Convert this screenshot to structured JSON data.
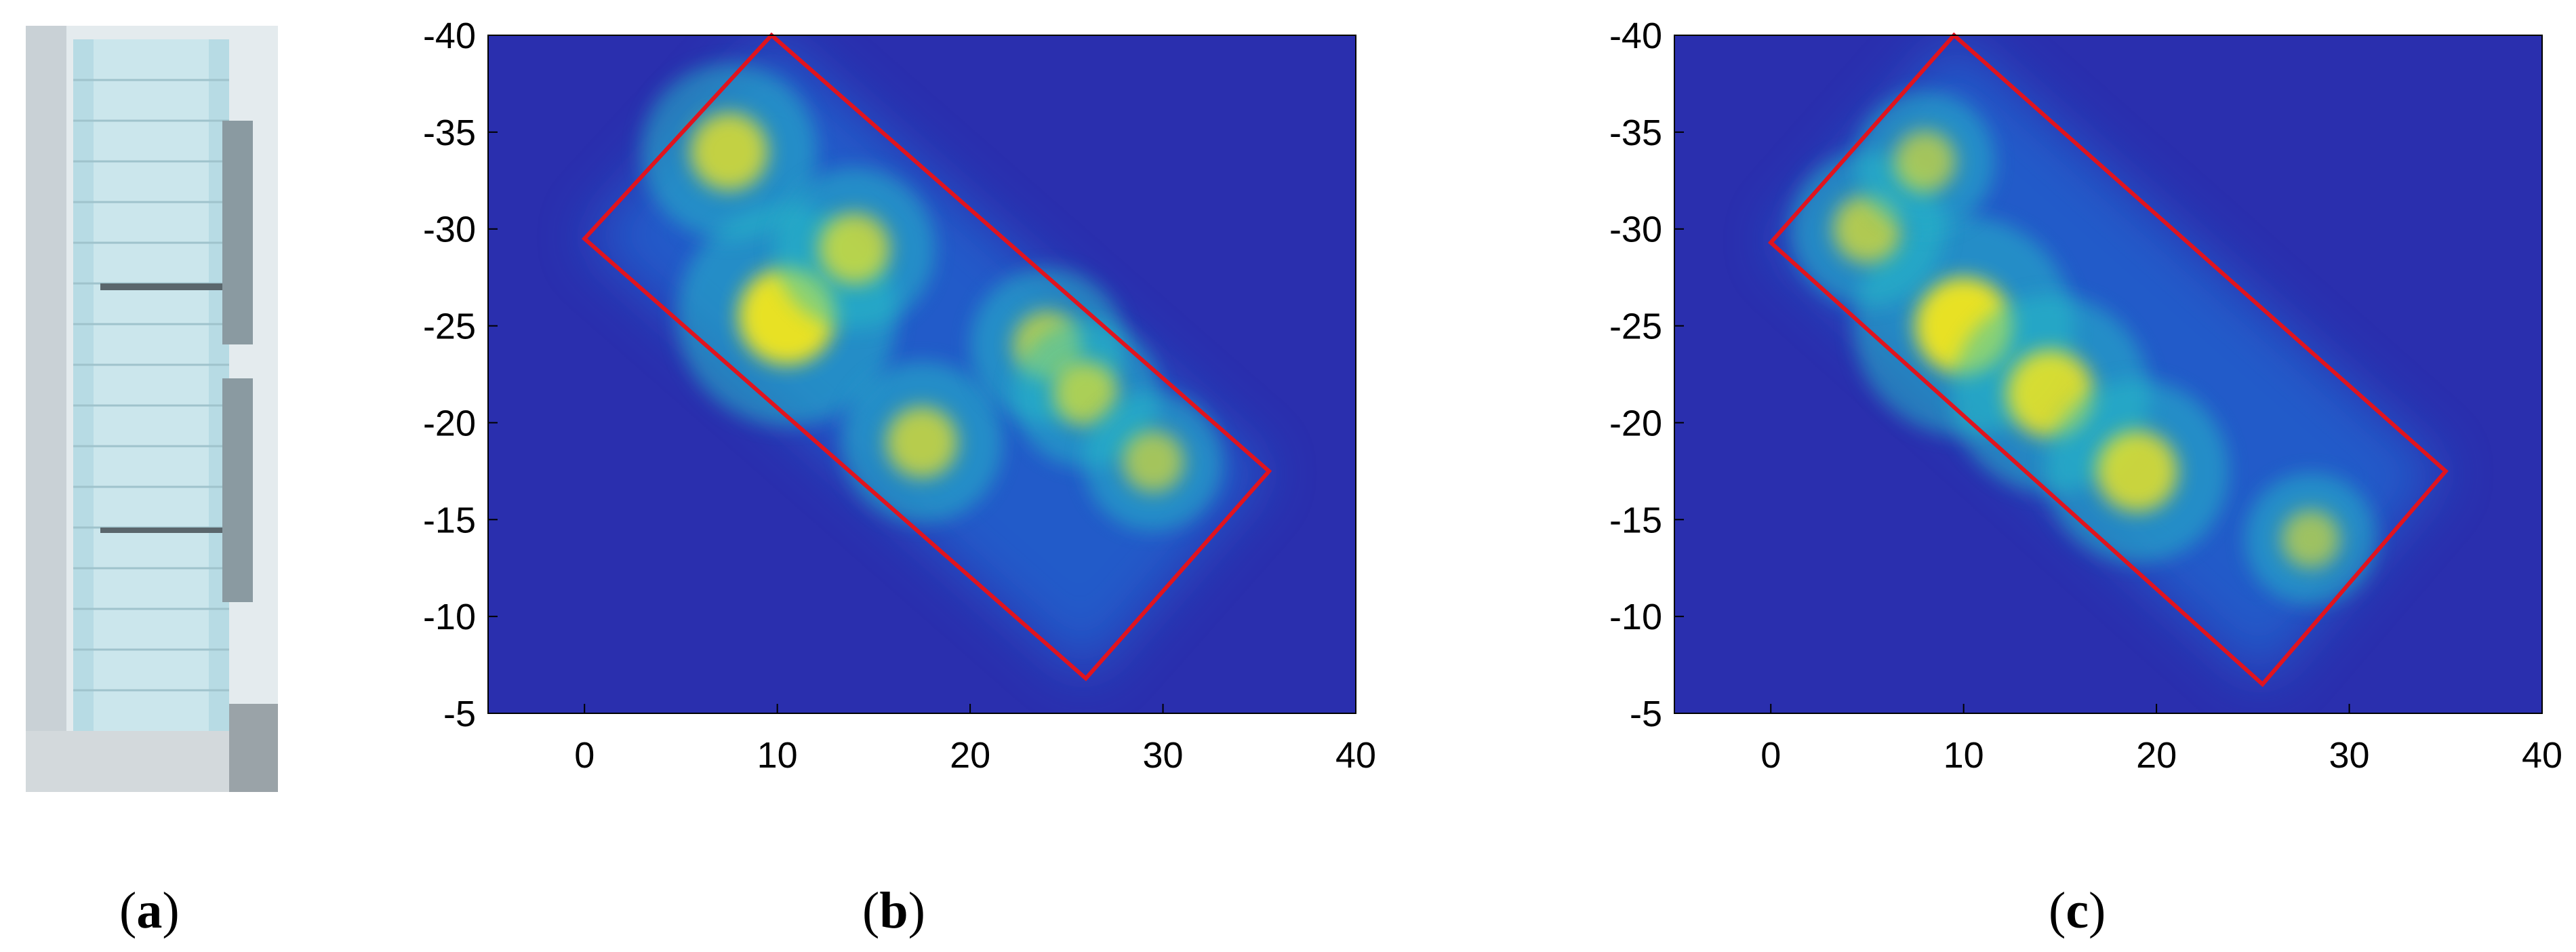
{
  "captions": [
    {
      "open": "(",
      "letter": "a",
      "close": ")"
    },
    {
      "open": "(",
      "letter": "b",
      "close": ")"
    },
    {
      "open": "(",
      "letter": "c",
      "close": ")"
    }
  ],
  "colors": {
    "background_low": "#2a2fae",
    "mid": "#1f7fe0",
    "cyan": "#25c0c6",
    "high": "#f3e61c",
    "box": "#e0141e"
  },
  "chart_data": [
    {
      "type": "heatmap",
      "panel": "b",
      "title": "",
      "xlabel": "",
      "ylabel": "",
      "x_ticks": [
        "0",
        "10",
        "20",
        "30",
        "40"
      ],
      "y_ticks": [
        "-40",
        "-35",
        "-30",
        "-25",
        "-20",
        "-15",
        "-10",
        "-5"
      ],
      "xlim": [
        -5,
        40
      ],
      "ylim": [
        -5,
        -40
      ],
      "grid": false,
      "footprint_box": [
        [
          0,
          -29.5
        ],
        [
          9.7,
          -40
        ],
        [
          35.5,
          -17.5
        ],
        [
          26,
          -6.8
        ]
      ],
      "hotspots": [
        {
          "x": 10.5,
          "y": -25.5,
          "intensity": 1.0
        },
        {
          "x": 7.5,
          "y": -34,
          "intensity": 0.7
        },
        {
          "x": 14,
          "y": -29,
          "intensity": 0.6
        },
        {
          "x": 17.5,
          "y": -19,
          "intensity": 0.6
        },
        {
          "x": 24,
          "y": -24,
          "intensity": 0.55
        },
        {
          "x": 26,
          "y": -21.5,
          "intensity": 0.5
        },
        {
          "x": 29.5,
          "y": -18,
          "intensity": 0.45
        }
      ]
    },
    {
      "type": "heatmap",
      "panel": "c",
      "title": "",
      "xlabel": "",
      "ylabel": "",
      "x_ticks": [
        "0",
        "10",
        "20",
        "30",
        "40"
      ],
      "y_ticks": [
        "-40",
        "-35",
        "-30",
        "-25",
        "-20",
        "-15",
        "-10",
        "-5"
      ],
      "xlim": [
        -5,
        40
      ],
      "ylim": [
        -5,
        -40
      ],
      "grid": false,
      "footprint_box": [
        [
          0,
          -29.3
        ],
        [
          9.5,
          -40
        ],
        [
          35,
          -17.5
        ],
        [
          25.5,
          -6.5
        ]
      ],
      "hotspots": [
        {
          "x": 10,
          "y": -25,
          "intensity": 1.0
        },
        {
          "x": 14.5,
          "y": -21.5,
          "intensity": 0.85
        },
        {
          "x": 19,
          "y": -17.5,
          "intensity": 0.75
        },
        {
          "x": 5,
          "y": -30,
          "intensity": 0.55
        },
        {
          "x": 8,
          "y": -33.5,
          "intensity": 0.45
        },
        {
          "x": 28,
          "y": -14,
          "intensity": 0.4
        }
      ]
    }
  ]
}
